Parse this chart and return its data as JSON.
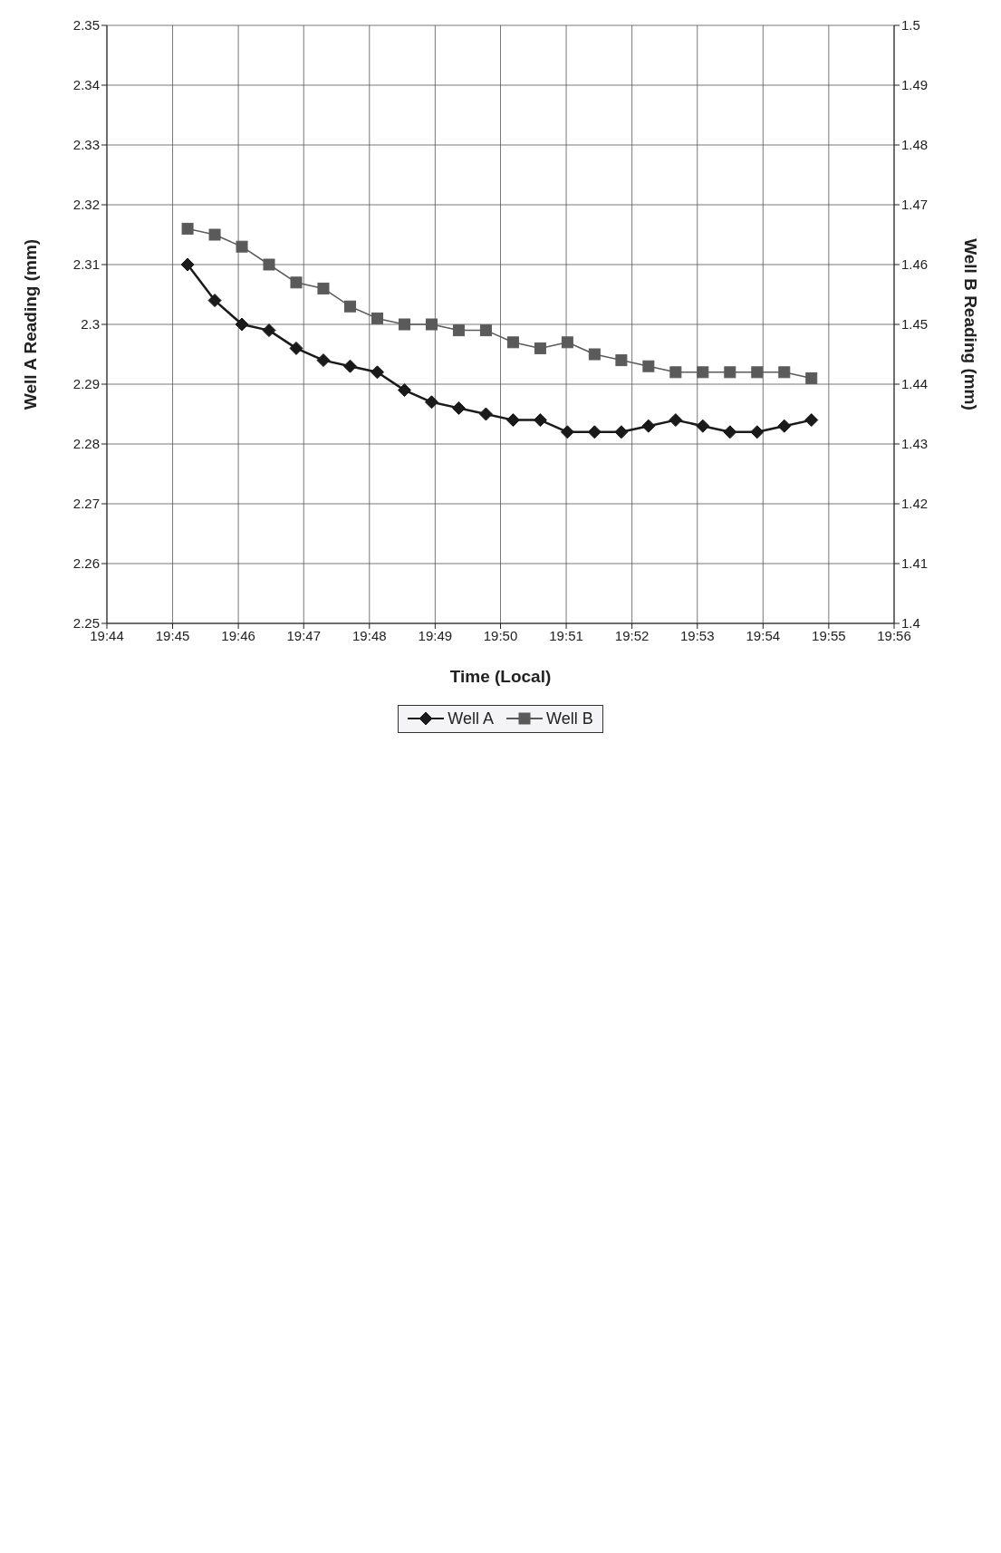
{
  "chart_data": {
    "type": "line",
    "xlabel": "Time (Local)",
    "ylabel": "Well A Reading (mm)",
    "y2label": "Well B Reading (mm)",
    "x": [
      19.7538,
      19.7607,
      19.7676,
      19.7745,
      19.7814,
      19.7883,
      19.7951,
      19.802,
      19.8089,
      19.8158,
      19.8227,
      19.8296,
      19.8365,
      19.8434,
      19.8503,
      19.8572,
      19.864,
      19.8709,
      19.8778,
      19.8847,
      19.8916,
      19.8985,
      19.9054,
      19.9123
    ],
    "series": [
      {
        "name": "Well A",
        "color": "#1a1a1a",
        "marker": "diamond",
        "values": [
          2.31,
          2.304,
          2.3,
          2.299,
          2.296,
          2.294,
          2.293,
          2.292,
          2.289,
          2.287,
          2.286,
          2.285,
          2.284,
          2.284,
          2.282,
          2.282,
          2.282,
          2.283,
          2.284,
          2.283,
          2.282,
          2.282,
          2.283,
          2.284
        ]
      },
      {
        "name": "Well B",
        "color": "#5a5a5a",
        "marker": "square",
        "axis": "y2",
        "values": [
          1.466,
          1.465,
          1.463,
          1.46,
          1.457,
          1.456,
          1.453,
          1.451,
          1.45,
          1.45,
          1.449,
          1.449,
          1.447,
          1.446,
          1.447,
          1.445,
          1.444,
          1.443,
          1.442,
          1.442,
          1.442,
          1.442,
          1.442,
          1.441
        ]
      }
    ],
    "xlim": [
      19.7333,
      19.9333
    ],
    "xticks": [
      {
        "value": 19.7333,
        "label": "19:44"
      },
      {
        "value": 19.75,
        "label": "19:45"
      },
      {
        "value": 19.7667,
        "label": "19:46"
      },
      {
        "value": 19.7833,
        "label": "19:47"
      },
      {
        "value": 19.8,
        "label": "19:48"
      },
      {
        "value": 19.8167,
        "label": "19:49"
      },
      {
        "value": 19.8333,
        "label": "19:50"
      },
      {
        "value": 19.85,
        "label": "19:51"
      },
      {
        "value": 19.8667,
        "label": "19:52"
      },
      {
        "value": 19.8833,
        "label": "19:53"
      },
      {
        "value": 19.9,
        "label": "19:54"
      },
      {
        "value": 19.9167,
        "label": "19:55"
      },
      {
        "value": 19.9333,
        "label": "19:56"
      }
    ],
    "ylim": [
      2.25,
      2.35
    ],
    "yticks": [
      2.25,
      2.26,
      2.27,
      2.28,
      2.29,
      2.3,
      2.31,
      2.32,
      2.33,
      2.34,
      2.35
    ],
    "y2lim": [
      1.4,
      1.5
    ],
    "y2ticks": [
      1.4,
      1.41,
      1.42,
      1.43,
      1.44,
      1.45,
      1.46,
      1.47,
      1.48,
      1.49,
      1.5
    ],
    "grid": true,
    "legend": "bottom",
    "line_style": "solid"
  }
}
